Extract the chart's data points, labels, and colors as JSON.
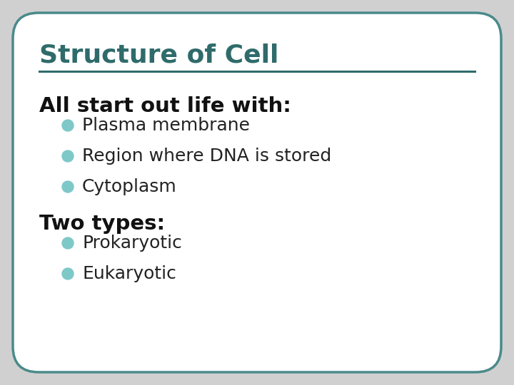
{
  "title": "Structure of Cell",
  "title_color": "#2F6B6B",
  "title_fontsize": 26,
  "line_color": "#2F6B6B",
  "background_color": "#FFFFFF",
  "border_color": "#4A8A8A",
  "outer_bg": "#D0D0D0",
  "section1_text": "All start out life with:",
  "section1_fontsize": 21,
  "section1_color": "#111111",
  "bullet_color": "#7EC8C8",
  "bullet1": [
    "Plasma membrane",
    "Region where DNA is stored",
    "Cytoplasm"
  ],
  "section2_text": "Two types:",
  "section2_fontsize": 21,
  "section2_color": "#111111",
  "bullet2": [
    "Prokaryotic",
    "Eukaryotic"
  ],
  "bullet_fontsize": 18,
  "bullet_text_color": "#222222"
}
